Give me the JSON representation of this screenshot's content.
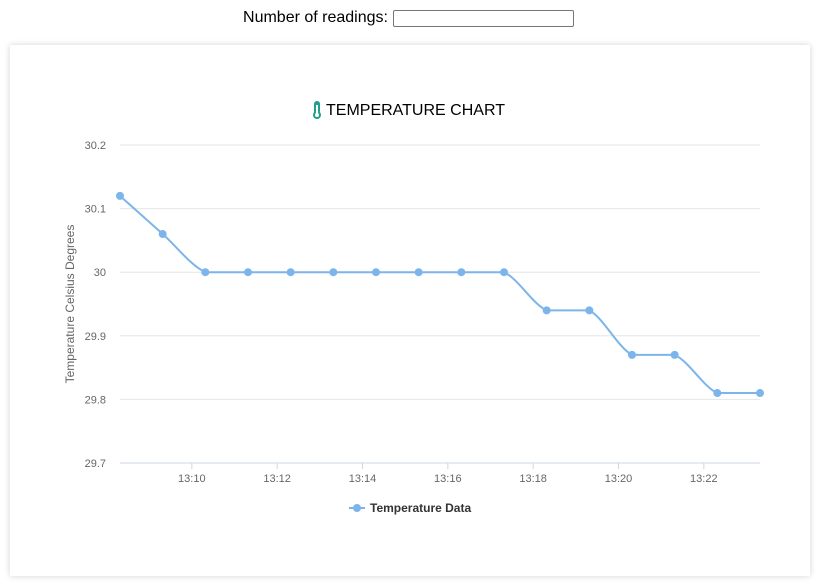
{
  "form": {
    "readings_label": "Number of readings:",
    "readings_value": ""
  },
  "chart_data": {
    "type": "line",
    "title": "TEMPERATURE CHART",
    "ylabel": "Temperature Celsius Degrees",
    "xlabel": "",
    "ylim": [
      29.7,
      30.2
    ],
    "yticks": [
      "30.2",
      "30.1",
      "30",
      "29.9",
      "29.8",
      "29.7"
    ],
    "xticks": [
      "13:10",
      "13:12",
      "13:14",
      "13:16",
      "13:18",
      "13:20",
      "13:22"
    ],
    "x": [
      "13:08:19",
      "13:09:19",
      "13:10:19",
      "13:11:19",
      "13:12:19",
      "13:13:19",
      "13:14:19",
      "13:15:19",
      "13:16:19",
      "13:17:19",
      "13:18:19",
      "13:19:19",
      "13:20:19",
      "13:21:19",
      "13:22:19",
      "13:23:19"
    ],
    "series": [
      {
        "name": "Temperature Data",
        "values": [
          30.12,
          30.06,
          30.0,
          30.0,
          30.0,
          30.0,
          30.0,
          30.0,
          30.0,
          30.0,
          29.94,
          29.94,
          29.87,
          29.87,
          29.81,
          29.81
        ]
      }
    ],
    "colors": {
      "series": "#7cb5ec",
      "icon": "#20a08a"
    },
    "grid": true,
    "legend": "bottom-center"
  }
}
